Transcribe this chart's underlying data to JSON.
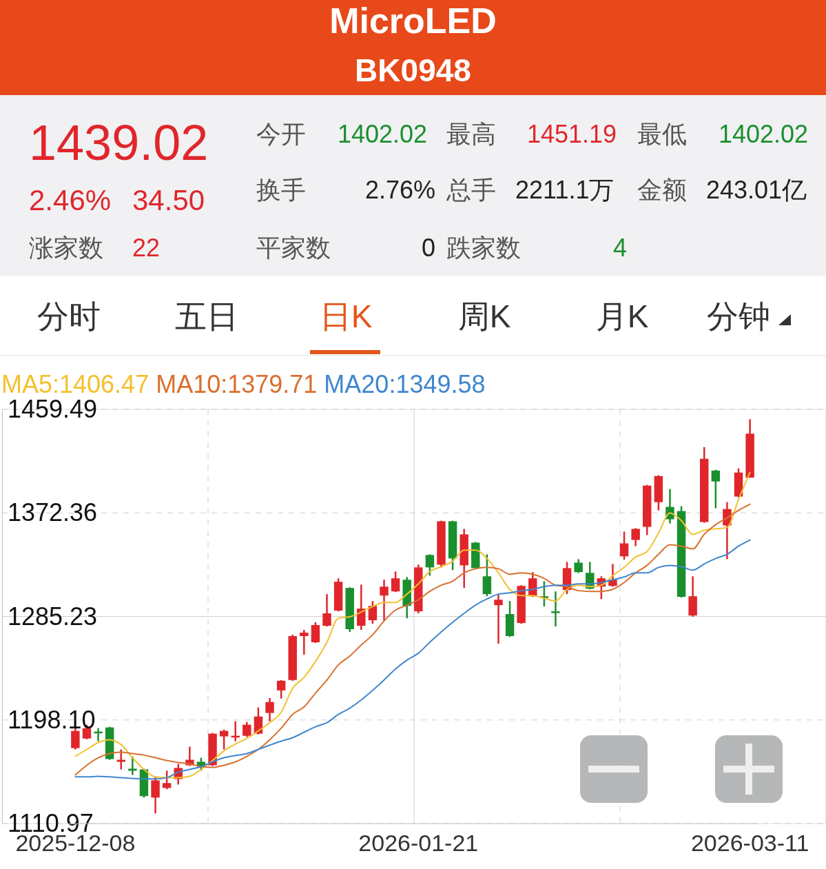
{
  "chart_data": {
    "type": "candlestick",
    "title": "MicroLED",
    "subtitle": "BK0948",
    "annotations": [
      "1439.02",
      "2.46%",
      "34.50",
      "涨家数",
      "22",
      "今开",
      "1402.02",
      "最高",
      "1451.19",
      "最低",
      "1402.02",
      "换手",
      "2.76%",
      "总手",
      "2211.1万",
      "金额",
      "243.01亿",
      "平家数",
      "0",
      "跌家数",
      "4",
      "分时",
      "五日",
      "日K",
      "周K",
      "月K",
      "分钟"
    ],
    "categories": [
      "2025-12-08",
      null,
      null,
      null,
      null,
      null,
      null,
      null,
      null,
      null,
      null,
      null,
      null,
      null,
      null,
      null,
      null,
      null,
      null,
      null,
      null,
      null,
      null,
      null,
      null,
      null,
      null,
      null,
      null,
      null,
      "2026-01-21",
      null,
      null,
      null,
      null,
      null,
      null,
      null,
      null,
      null,
      null,
      null,
      null,
      null,
      null,
      null,
      null,
      null,
      null,
      null,
      null,
      null,
      null,
      null,
      null,
      null,
      null,
      null,
      null,
      "2026-03-11"
    ],
    "ohlc": [
      [
        1174.4,
        1191.2,
        1173.3,
        1188.9
      ],
      [
        1182.5,
        1194.1,
        1181.9,
        1191.2
      ],
      [
        1188.3,
        1191.2,
        1180.2,
        1187.2
      ],
      [
        1191.8,
        1192.4,
        1164.6,
        1165.2
      ],
      [
        1162.9,
        1173.3,
        1156.5,
        1164.6
      ],
      [
        1157.1,
        1167.5,
        1151.9,
        1155.4
      ],
      [
        1156.5,
        1157.1,
        1132.8,
        1134.0
      ],
      [
        1132.8,
        1150.7,
        1119.5,
        1147.3
      ],
      [
        1140.9,
        1155.4,
        1139.8,
        1145.0
      ],
      [
        1148.4,
        1161.1,
        1143.8,
        1157.7
      ],
      [
        1160.0,
        1175.6,
        1159.4,
        1164.6
      ],
      [
        1162.9,
        1166.3,
        1155.4,
        1158.8
      ],
      [
        1160.0,
        1187.2,
        1159.4,
        1186.6
      ],
      [
        1184.3,
        1190.0,
        1173.3,
        1188.9
      ],
      [
        1183.7,
        1197.0,
        1180.2,
        1184.8
      ],
      [
        1184.8,
        1196.4,
        1183.7,
        1194.1
      ],
      [
        1186.6,
        1208.6,
        1186.0,
        1201.0
      ],
      [
        1204.0,
        1216.6,
        1197.0,
        1213.2
      ],
      [
        1223.0,
        1231.7,
        1216.1,
        1231.1
      ],
      [
        1231.7,
        1269.8,
        1231.1,
        1268.7
      ],
      [
        1268.7,
        1273.9,
        1253.1,
        1271.6
      ],
      [
        1263.5,
        1280.3,
        1262.9,
        1278.0
      ],
      [
        1277.4,
        1304.0,
        1276.8,
        1287.8
      ],
      [
        1290.1,
        1317.3,
        1289.5,
        1314.4
      ],
      [
        1309.2,
        1309.7,
        1272.2,
        1274.5
      ],
      [
        1277.4,
        1312.0,
        1273.9,
        1291.8
      ],
      [
        1282.0,
        1298.2,
        1279.1,
        1294.1
      ],
      [
        1302.8,
        1316.1,
        1281.4,
        1310.3
      ],
      [
        1306.3,
        1323.0,
        1305.7,
        1317.3
      ],
      [
        1316.1,
        1318.4,
        1283.7,
        1294.1
      ],
      [
        1289.5,
        1328.8,
        1287.8,
        1326.5
      ],
      [
        1336.9,
        1337.5,
        1319.6,
        1326.5
      ],
      [
        1328.8,
        1365.8,
        1326.5,
        1365.3
      ],
      [
        1365.3,
        1365.8,
        1324.2,
        1334.0
      ],
      [
        1328.2,
        1358.9,
        1309.2,
        1354.3
      ],
      [
        1347.3,
        1347.9,
        1325.3,
        1325.9
      ],
      [
        1319.0,
        1337.5,
        1302.2,
        1304.0
      ],
      [
        1294.7,
        1304.0,
        1262.3,
        1299.3
      ],
      [
        1287.2,
        1298.2,
        1268.1,
        1268.7
      ],
      [
        1279.7,
        1311.5,
        1279.1,
        1310.9
      ],
      [
        1302.2,
        1322.5,
        1301.7,
        1317.3
      ],
      [
        1302.2,
        1314.9,
        1293.6,
        1301.7
      ],
      [
        1289.5,
        1306.3,
        1276.8,
        1288.3
      ],
      [
        1307.4,
        1331.1,
        1304.0,
        1325.9
      ],
      [
        1330.5,
        1333.4,
        1321.9,
        1322.5
      ],
      [
        1321.9,
        1331.1,
        1308.0,
        1308.6
      ],
      [
        1310.3,
        1319.0,
        1299.9,
        1317.3
      ],
      [
        1310.9,
        1329.4,
        1310.3,
        1316.1
      ],
      [
        1335.8,
        1356.6,
        1332.9,
        1346.7
      ],
      [
        1349.6,
        1359.5,
        1344.4,
        1358.9
      ],
      [
        1360.6,
        1395.9,
        1353.7,
        1395.3
      ],
      [
        1381.4,
        1404.0,
        1374.5,
        1403.4
      ],
      [
        1377.4,
        1392.4,
        1363.5,
        1367.0
      ],
      [
        1373.9,
        1378.0,
        1301.1,
        1301.7
      ],
      [
        1286.0,
        1319.0,
        1284.9,
        1302.2
      ],
      [
        1364.7,
        1427.7,
        1364.1,
        1417.9
      ],
      [
        1408.0,
        1408.6,
        1376.2,
        1398.8
      ],
      [
        1361.8,
        1381.4,
        1333.4,
        1375.6
      ],
      [
        1386.1,
        1409.8,
        1385.5,
        1406.3
      ],
      [
        1402.02,
        1451.19,
        1402.02,
        1439.02
      ]
    ],
    "series": [
      {
        "name": "MA5:1406.47",
        "type": "line",
        "color": "#f2c12e",
        "values": [
          1167.5,
          1173.3,
          1179.1,
          1181.4,
          1177.3,
          1166.3,
          1156.5,
          1150.2,
          1149.6,
          1149.6,
          1150.7,
          1156.5,
          1164.0,
          1172.1,
          1177.9,
          1182.5,
          1188.9,
          1195.8,
          1204.5,
          1224.7,
          1234.0,
          1247.3,
          1263.5,
          1283.7,
          1284.9,
          1288.9,
          1293.6,
          1297.0,
          1297.0,
          1304.0,
          1312.6,
          1323.0,
          1327.1,
          1331.7,
          1341.0,
          1341.0,
          1334.0,
          1321.9,
          1308.0,
          1302.8,
          1302.8,
          1300.5,
          1298.2,
          1308.0,
          1311.5,
          1310.3,
          1311.5,
          1319.6,
          1326.5,
          1335.2,
          1339.8,
          1355.4,
          1372.2,
          1365.8,
          1354.3,
          1357.8,
          1358.9,
          1360.1,
          1383.8,
          1406.47
        ]
      },
      {
        "name": "MA10:1379.71",
        "type": "line",
        "color": "#d8702e",
        "values": [
          1151.9,
          1160.0,
          1166.3,
          1169.8,
          1171.0,
          1169.8,
          1168.6,
          1166.3,
          1164.0,
          1162.3,
          1161.1,
          1158.8,
          1158.2,
          1160.0,
          1162.9,
          1167.5,
          1173.3,
          1181.4,
          1191.2,
          1202.8,
          1209.1,
          1220.7,
          1231.7,
          1244.4,
          1251.9,
          1261.2,
          1269.8,
          1281.4,
          1290.6,
          1294.7,
          1299.3,
          1306.3,
          1311.5,
          1314.9,
          1321.9,
          1325.3,
          1326.5,
          1325.3,
          1320.7,
          1321.9,
          1320.7,
          1317.2,
          1311.5,
          1310.3,
          1306.9,
          1306.3,
          1306.3,
          1308.0,
          1313.8,
          1321.9,
          1328.2,
          1337.5,
          1345.6,
          1344.4,
          1342.1,
          1354.3,
          1362.4,
          1368.2,
          1374.5,
          1379.71
        ]
      },
      {
        "name": "MA20:1349.58",
        "type": "line",
        "color": "#3f86cf",
        "values": [
          1150.2,
          1150.2,
          1150.7,
          1150.2,
          1149.6,
          1149.0,
          1148.5,
          1148.5,
          1149.6,
          1154.2,
          1156.5,
          1158.8,
          1162.9,
          1166.3,
          1168.1,
          1169.8,
          1173.3,
          1176.9,
          1180.3,
          1183.2,
          1187.8,
          1192.4,
          1195.8,
          1202.8,
          1208.0,
          1214.9,
          1223.0,
          1231.7,
          1241.0,
          1248.5,
          1254.3,
          1263.5,
          1272.2,
          1280.3,
          1287.8,
          1294.7,
          1299.9,
          1304.0,
          1305.1,
          1306.9,
          1308.0,
          1310.3,
          1311.5,
          1311.5,
          1312.6,
          1312.6,
          1313.8,
          1316.1,
          1318.4,
          1321.9,
          1321.9,
          1326.5,
          1328.2,
          1327.1,
          1324.2,
          1329.4,
          1334.0,
          1337.5,
          1344.4,
          1349.58
        ]
      }
    ],
    "ylim": [
      1110.97,
      1459.49
    ],
    "yticks": [
      1110.97,
      {
        "value": 1198.1,
        "label": "1198.10"
      },
      1285.23,
      1372.36,
      1459.49
    ],
    "grid": true,
    "legend": "top left"
  }
}
